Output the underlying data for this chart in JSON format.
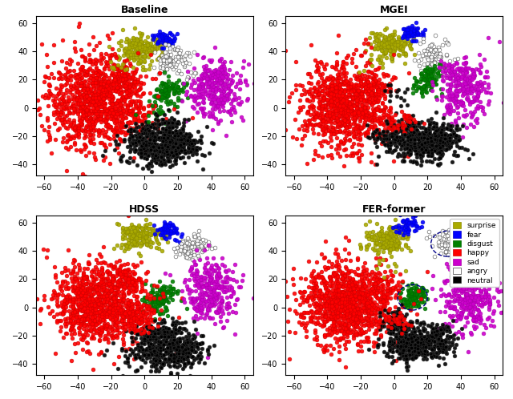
{
  "titles": [
    "Baseline",
    "MGEI",
    "HDSS",
    "FER-former"
  ],
  "classes": [
    "surprise",
    "fear",
    "disgust",
    "happy",
    "sad",
    "angry",
    "neutral"
  ],
  "colors": [
    "#aaaa00",
    "#0000ff",
    "#008000",
    "#ff0000",
    "#cc00cc",
    "#ffffff",
    "#000000"
  ],
  "edge_colors": [
    "#888800",
    "#0000cc",
    "#006600",
    "#cc0000",
    "#aa00aa",
    "#444444",
    "#333333"
  ],
  "xlim": [
    -65,
    65
  ],
  "ylim": [
    -48,
    65
  ],
  "figsize": [
    6.4,
    4.98
  ],
  "dpi": 100,
  "marker_size": 12,
  "alpha": 0.9,
  "seed": 42,
  "legend_labels": [
    "surprise",
    "fear",
    "disgust",
    "happy",
    "sad",
    "angry",
    "neutral"
  ]
}
